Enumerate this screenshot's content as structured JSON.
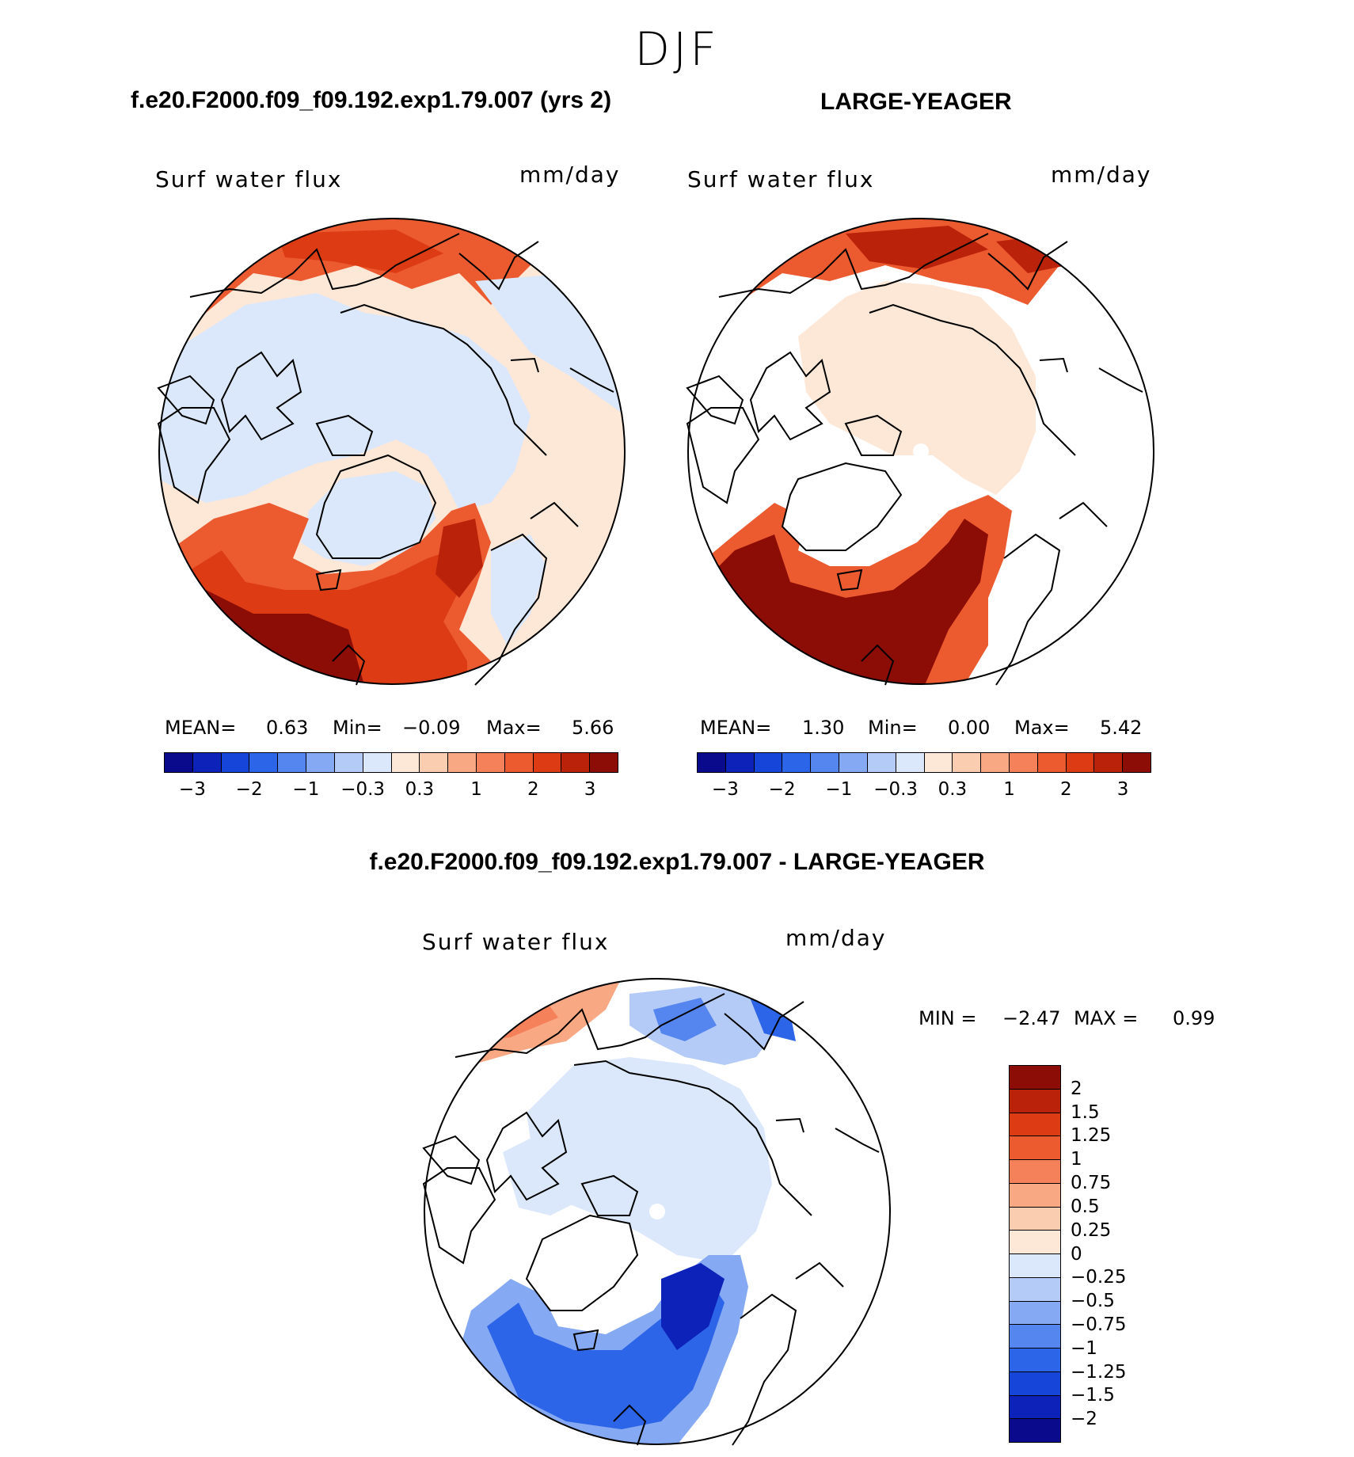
{
  "season": "DJF",
  "panels": [
    {
      "case": "f.e20.F2000.f09_f09.192.exp1.79.007 (yrs 2)",
      "variable": "Surf water flux",
      "units": "mm/day",
      "stats": {
        "mean_label": "MEAN=",
        "mean": "0.63",
        "min_label": "Min=",
        "min": "−0.09",
        "max_label": "Max=",
        "max": "5.66"
      }
    },
    {
      "case": "LARGE-YEAGER",
      "variable": "Surf water flux",
      "units": "mm/day",
      "stats": {
        "mean_label": "MEAN=",
        "mean": "1.30",
        "min_label": "Min=",
        "min": "0.00",
        "max_label": "Max=",
        "max": "5.42"
      }
    }
  ],
  "colorbar": {
    "ticks": [
      "−3",
      "−2",
      "−1",
      "−0.3",
      "0.3",
      "1",
      "2",
      "3"
    ],
    "colors": [
      "#0a0a8c",
      "#0c22b8",
      "#1646d9",
      "#2d65e8",
      "#5585ee",
      "#86a9f3",
      "#b4cbf7",
      "#dbe8fb",
      "#fde7d7",
      "#fbcdb0",
      "#f8a883",
      "#f5815a",
      "#ec5a30",
      "#dc3b14",
      "#bb220a",
      "#8c0c06"
    ]
  },
  "diff_panel": {
    "title": "f.e20.F2000.f09_f09.192.exp1.79.007 - LARGE-YEAGER",
    "variable": "Surf water flux",
    "units": "mm/day",
    "stats": {
      "min_label": "MIN =",
      "min": "−2.47",
      "max_label": "MAX =",
      "max": "0.99"
    },
    "colorbar": {
      "ticks": [
        "2",
        "1.5",
        "1.25",
        "1",
        "0.75",
        "0.5",
        "0.25",
        "0",
        "−0.25",
        "−0.5",
        "−0.75",
        "−1",
        "−1.25",
        "−1.5",
        "−2"
      ],
      "colors": [
        "#8c0c06",
        "#bb220a",
        "#dc3b14",
        "#ec5a30",
        "#f5815a",
        "#f8a883",
        "#fbcdb0",
        "#fde7d7",
        "#dbe8fb",
        "#b4cbf7",
        "#86a9f3",
        "#5585ee",
        "#2d65e8",
        "#1646d9",
        "#0c22b8",
        "#0a0a8c"
      ]
    }
  }
}
